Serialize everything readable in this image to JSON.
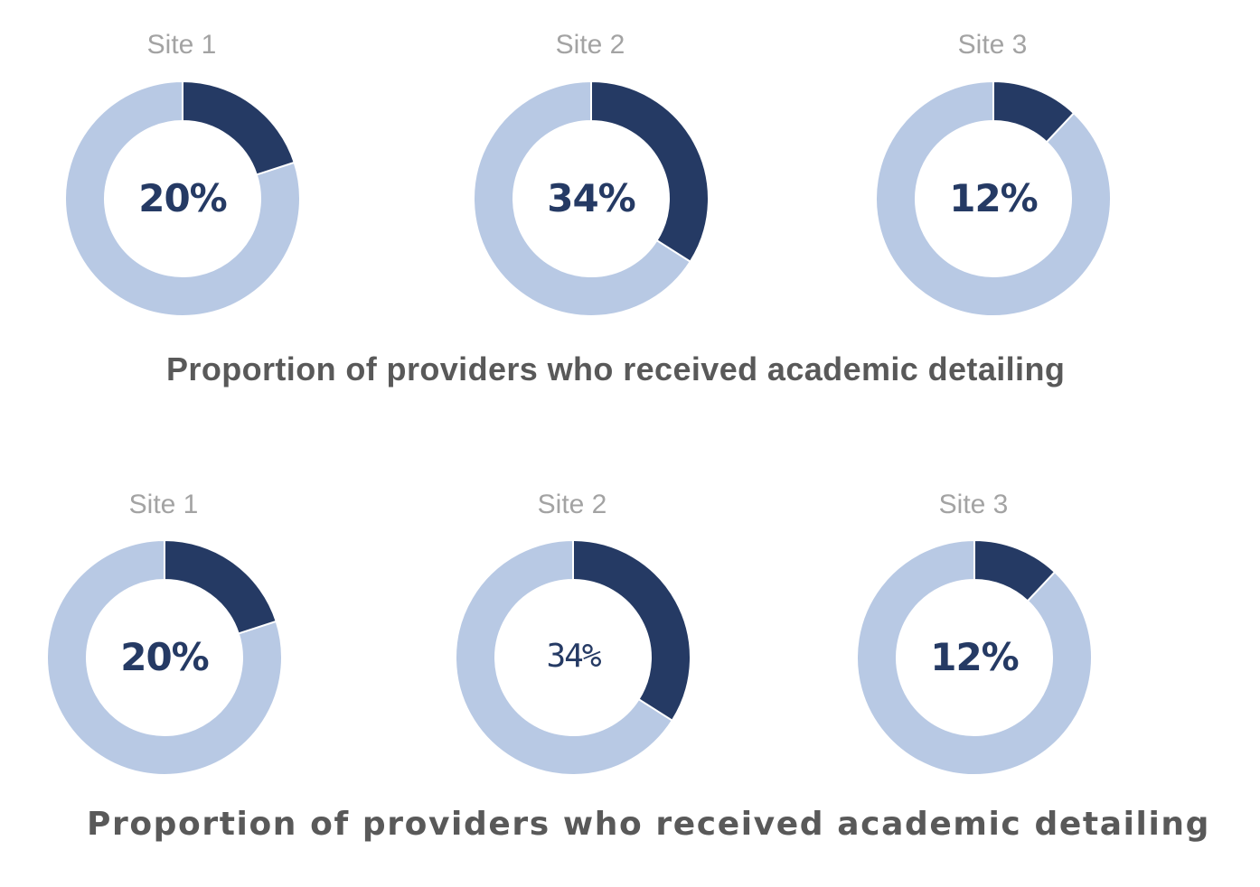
{
  "colors": {
    "filled": "#253a64",
    "remaining": "#b8c9e4",
    "site_label": "#a3a3a3",
    "title": "#595959",
    "value": "#253a64"
  },
  "chart_data": [
    {
      "type": "pie",
      "title": "Proportion of providers who received academic detailing",
      "categories": [
        "Site 1",
        "Site 2",
        "Site 3"
      ],
      "values": [
        20,
        34,
        12
      ],
      "value_labels": [
        "20%",
        "34%",
        "12%"
      ],
      "unit": "%"
    },
    {
      "type": "pie",
      "title": "Proportion of providers who received academic detailing",
      "categories": [
        "Site 1",
        "Site 2",
        "Site 3"
      ],
      "values": [
        20,
        34,
        12
      ],
      "value_labels": [
        "20%",
        "34%",
        "12%"
      ],
      "unit": "%"
    }
  ]
}
